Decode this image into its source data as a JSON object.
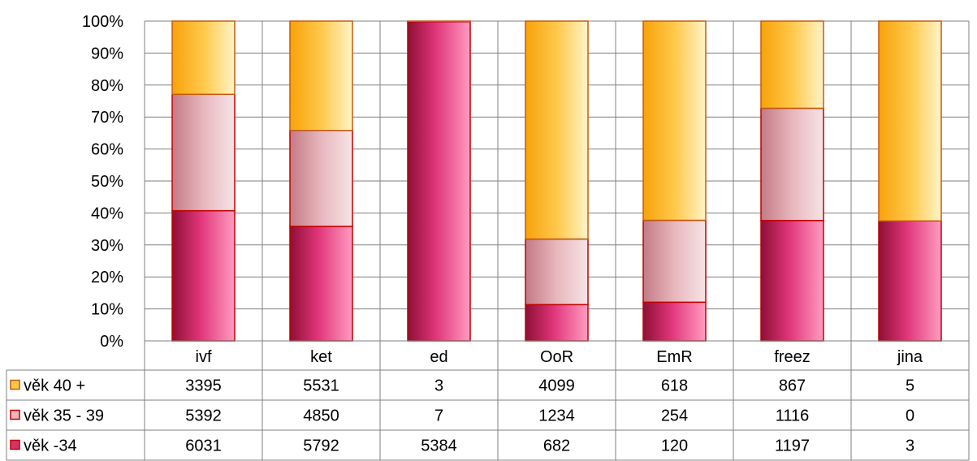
{
  "chart_data": {
    "type": "bar",
    "stacked": "percent",
    "categories": [
      "ivf",
      "ket",
      "ed",
      "OoR",
      "EmR",
      "freez",
      "jina"
    ],
    "series": [
      {
        "name": "věk -34",
        "values": [
          6031,
          5792,
          5384,
          682,
          120,
          1197,
          3
        ],
        "color": "#d6336c"
      },
      {
        "name": "věk 35 - 39",
        "values": [
          5392,
          4850,
          7,
          1234,
          254,
          1116,
          0
        ],
        "color": "#e3a4ad"
      },
      {
        "name": "věk 40 +",
        "values": [
          3395,
          5531,
          3,
          4099,
          618,
          867,
          5
        ],
        "color": "#fbb524"
      }
    ],
    "table_row_order": [
      "věk 40 +",
      "věk 35 - 39",
      "věk -34"
    ],
    "ylim": [
      0,
      100
    ],
    "yticks": [
      "0%",
      "10%",
      "20%",
      "30%",
      "40%",
      "50%",
      "60%",
      "70%",
      "80%",
      "90%",
      "100%"
    ],
    "grid": true,
    "legend": "data-table"
  }
}
